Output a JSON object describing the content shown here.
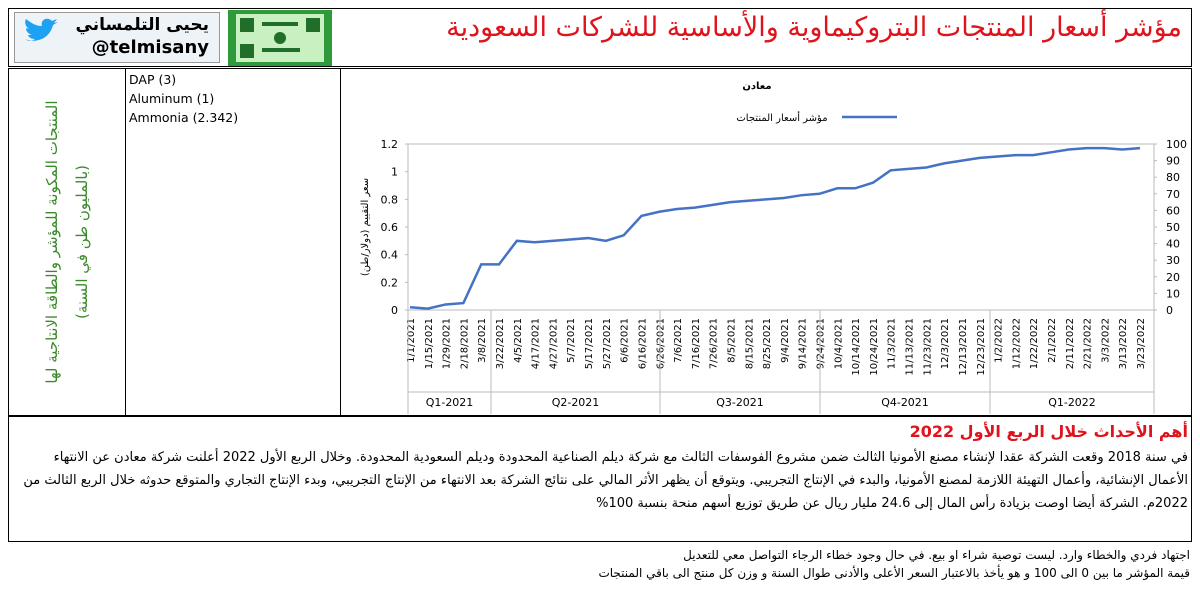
{
  "header": {
    "title": "مؤشر أسعار المنتجات البتروكيماوية والأساسية للشركات السعودية",
    "author": "يحيى التلمساني",
    "handle": "@telmisany"
  },
  "products": {
    "heading": "المنتجات المكونة للمؤشر والطاقة الانتاجية لها (بالمليون طن في السنة)",
    "items": [
      "DAP (3)",
      "Aluminum (1)",
      "Ammonia (2.342)"
    ]
  },
  "chart_data": {
    "type": "line",
    "title": "معادن",
    "y_label": "سعر التقييم (دولار/طن)",
    "categories": [
      "1/1/2021",
      "1/15/2021",
      "1/29/2021",
      "2/18/2021",
      "3/8/2021",
      "3/22/2021",
      "4/5/2021",
      "4/17/2021",
      "4/27/2021",
      "5/7/2021",
      "5/17/2021",
      "5/27/2021",
      "6/6/2021",
      "6/16/2021",
      "6/26/2021",
      "7/6/2021",
      "7/16/2021",
      "7/26/2021",
      "8/5/2021",
      "8/15/2021",
      "8/25/2021",
      "9/4/2021",
      "9/14/2021",
      "9/24/2021",
      "10/4/2021",
      "10/14/2021",
      "10/24/2021",
      "11/3/2021",
      "11/13/2021",
      "11/23/2021",
      "12/3/2021",
      "12/13/2021",
      "12/23/2021",
      "1/2/2022",
      "1/12/2022",
      "1/22/2022",
      "2/1/2022",
      "2/11/2022",
      "2/21/2022",
      "3/3/2022",
      "3/13/2022",
      "3/23/2022"
    ],
    "quarters": [
      "Q1-2021",
      "Q2-2021",
      "Q3-2021",
      "Q4-2021",
      "Q1-2022"
    ],
    "series": [
      {
        "name": "مؤشر أسعار المنتجات",
        "color": "#4472c4",
        "values": [
          0.02,
          0.01,
          0.04,
          0.05,
          0.33,
          0.33,
          0.5,
          0.49,
          0.5,
          0.51,
          0.52,
          0.5,
          0.54,
          0.68,
          0.71,
          0.73,
          0.74,
          0.76,
          0.78,
          0.79,
          0.8,
          0.81,
          0.83,
          0.84,
          0.88,
          0.88,
          0.92,
          1.01,
          1.02,
          1.03,
          1.06,
          1.08,
          1.1,
          1.11,
          1.12,
          1.12,
          1.14,
          1.16,
          1.17,
          1.17,
          1.16,
          1.17
        ]
      }
    ],
    "ylim": [
      0,
      1.2
    ],
    "yticks": [
      0,
      0.2,
      0.4,
      0.6,
      0.8,
      1,
      {
        "value": 1.2,
        "label": "1.2"
      }
    ],
    "y2lim": [
      0,
      100
    ],
    "y2ticks": [
      0,
      10,
      20,
      30,
      40,
      50,
      60,
      70,
      80,
      90,
      100
    ]
  },
  "events": {
    "heading": "أهم الأحداث خلال الربع الأول 2022",
    "text": "في سنة 2018 وقعت الشركة عقدا لإنشاء مصنع الأمونيا الثالث ضمن مشروع الفوسفات الثالث مع شركة ديلم الصناعية المحدودة وديلم السعودية المحدودة. وخلال الربع الأول 2022 أعلنت شركة معادن عن الانتهاء الأعمال الإنشائية، وأعمال التهيئة اللازمة لمصنع الأمونيا، والبدء في الإنتاج التجريبي. ويتوقع أن يظهر الأثر المالي على نتائج الشركة بعد الانتهاء من الإنتاج التجريبي، وبدء الإنتاج التجاري والمتوقع حدوثه خلال الربع الثالث من 2022م. الشركة  أيضا اوصت بزيادة رأس المال إلى 24.6 مليار ريال عن طريق توزيع أسهم منحة بنسبة 100%"
  },
  "footer": {
    "lines": [
      "اجتهاد فردي والخطاء وارد. ليست توصية شراء او بيع. في حال وجود خطاء الرجاء التواصل معي للتعديل",
      "قيمة المؤشر ما بين 0 الى 100 و هو يأخذ بالاعتبار السعر الأعلى والأدنى طوال السنة و وزن كل منتج الى باقي المنتجات"
    ]
  }
}
